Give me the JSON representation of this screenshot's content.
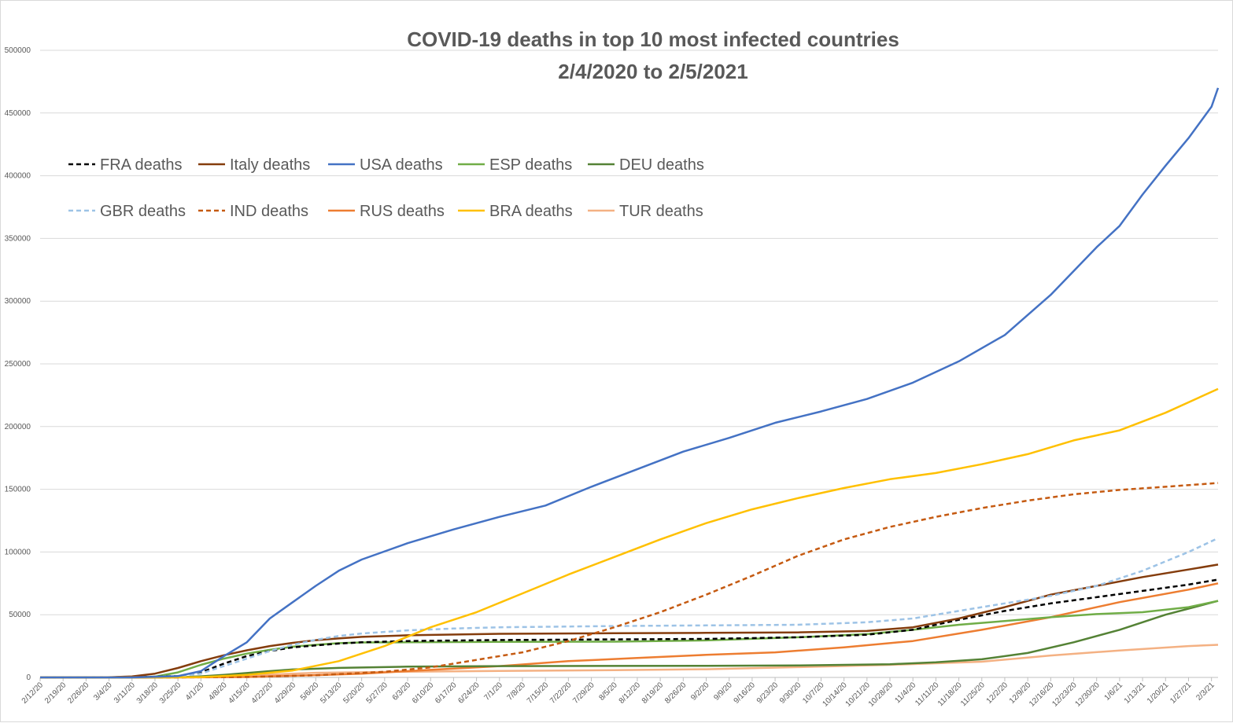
{
  "chart_data": {
    "type": "line",
    "title_lines": [
      "COVID-19 deaths in top 10 most infected countries",
      "2/4/2020 to 2/5/2021"
    ],
    "xlabel": "",
    "ylabel": "",
    "ylim": [
      0,
      500000
    ],
    "yticks": [
      "0",
      "50000",
      "100000",
      "150000",
      "200000",
      "250000",
      "300000",
      "350000",
      "400000",
      "450000",
      "500000"
    ],
    "x_tick_labels": [
      "2/12/20",
      "2/19/20",
      "2/26/20",
      "3/4/20",
      "3/11/20",
      "3/18/20",
      "3/25/20",
      "4/1/20",
      "4/8/20",
      "4/15/20",
      "4/22/20",
      "4/29/20",
      "5/6/20",
      "5/13/20",
      "5/20/20",
      "5/27/20",
      "6/3/20",
      "6/10/20",
      "6/17/20",
      "6/24/20",
      "7/1/20",
      "7/8/20",
      "7/15/20",
      "7/22/20",
      "7/29/20",
      "8/5/20",
      "8/12/20",
      "8/19/20",
      "8/26/20",
      "9/2/20",
      "9/9/20",
      "9/16/20",
      "9/23/20",
      "9/30/20",
      "10/7/20",
      "10/14/20",
      "10/21/20",
      "10/28/20",
      "11/4/20",
      "11/11/20",
      "11/18/20",
      "11/25/20",
      "12/2/20",
      "12/9/20",
      "12/16/20",
      "12/23/20",
      "12/30/20",
      "1/6/21",
      "1/13/21",
      "1/20/21",
      "1/27/21",
      "2/3/21"
    ],
    "x_range": [
      "2/12/20",
      "2/5/21"
    ],
    "grid": "horizontal",
    "legend_position": "top-left",
    "series": [
      {
        "name": "FRA deaths",
        "color": "#000000",
        "dash": true,
        "points": [
          [
            "2/12/20",
            0
          ],
          [
            "3/11/20",
            0
          ],
          [
            "3/25/20",
            1100
          ],
          [
            "4/1/20",
            4000
          ],
          [
            "4/8/20",
            11000
          ],
          [
            "4/15/20",
            17000
          ],
          [
            "4/22/20",
            21000
          ],
          [
            "4/29/20",
            24000
          ],
          [
            "5/6/20",
            25500
          ],
          [
            "5/13/20",
            27000
          ],
          [
            "5/20/20",
            28000
          ],
          [
            "6/3/20",
            29000
          ],
          [
            "7/1/20",
            29800
          ],
          [
            "8/5/20",
            30300
          ],
          [
            "9/2/20",
            30700
          ],
          [
            "9/30/20",
            32000
          ],
          [
            "10/21/20",
            34000
          ],
          [
            "11/4/20",
            38000
          ],
          [
            "11/18/20",
            46000
          ],
          [
            "12/2/20",
            53000
          ],
          [
            "12/16/20",
            59000
          ],
          [
            "12/30/20",
            64000
          ],
          [
            "1/13/21",
            69000
          ],
          [
            "1/27/21",
            74000
          ],
          [
            "2/5/21",
            78000
          ]
        ]
      },
      {
        "name": "Italy deaths",
        "color": "#843c0c",
        "dash": false,
        "points": [
          [
            "2/12/20",
            0
          ],
          [
            "2/26/20",
            0
          ],
          [
            "3/4/20",
            100
          ],
          [
            "3/11/20",
            800
          ],
          [
            "3/18/20",
            3000
          ],
          [
            "3/25/20",
            7500
          ],
          [
            "4/1/20",
            13000
          ],
          [
            "4/8/20",
            17700
          ],
          [
            "4/15/20",
            21600
          ],
          [
            "4/22/20",
            25000
          ],
          [
            "4/29/20",
            27600
          ],
          [
            "5/6/20",
            29700
          ],
          [
            "5/13/20",
            31100
          ],
          [
            "5/20/20",
            32300
          ],
          [
            "6/3/20",
            33600
          ],
          [
            "7/1/20",
            34800
          ],
          [
            "8/5/20",
            35200
          ],
          [
            "9/2/20",
            35500
          ],
          [
            "9/30/20",
            35900
          ],
          [
            "10/21/20",
            37000
          ],
          [
            "11/4/20",
            40000
          ],
          [
            "11/18/20",
            47000
          ],
          [
            "12/2/20",
            56000
          ],
          [
            "12/16/20",
            66000
          ],
          [
            "12/30/20",
            73000
          ],
          [
            "1/13/21",
            80000
          ],
          [
            "1/27/21",
            86000
          ],
          [
            "2/5/21",
            90000
          ]
        ]
      },
      {
        "name": "USA deaths",
        "color": "#4472c4",
        "dash": false,
        "points": [
          [
            "2/12/20",
            0
          ],
          [
            "3/11/20",
            0
          ],
          [
            "3/25/20",
            1000
          ],
          [
            "4/1/20",
            5000
          ],
          [
            "4/8/20",
            17000
          ],
          [
            "4/15/20",
            28000
          ],
          [
            "4/22/20",
            47000
          ],
          [
            "4/29/20",
            60000
          ],
          [
            "5/6/20",
            73000
          ],
          [
            "5/13/20",
            85000
          ],
          [
            "5/20/20",
            94000
          ],
          [
            "6/3/20",
            107000
          ],
          [
            "6/17/20",
            118000
          ],
          [
            "7/1/20",
            128000
          ],
          [
            "7/15/20",
            137000
          ],
          [
            "7/29/20",
            152000
          ],
          [
            "8/12/20",
            166000
          ],
          [
            "8/26/20",
            180000
          ],
          [
            "9/9/20",
            191000
          ],
          [
            "9/23/20",
            203000
          ],
          [
            "10/7/20",
            212000
          ],
          [
            "10/21/20",
            222000
          ],
          [
            "11/4/20",
            235000
          ],
          [
            "11/18/20",
            252000
          ],
          [
            "12/2/20",
            273000
          ],
          [
            "12/16/20",
            305000
          ],
          [
            "12/30/20",
            343000
          ],
          [
            "1/6/21",
            360000
          ],
          [
            "1/13/21",
            385000
          ],
          [
            "1/20/21",
            408000
          ],
          [
            "1/27/21",
            430000
          ],
          [
            "2/3/21",
            455000
          ],
          [
            "2/5/21",
            470000
          ]
        ]
      },
      {
        "name": "ESP deaths",
        "color": "#70ad47",
        "dash": false,
        "points": [
          [
            "2/12/20",
            0
          ],
          [
            "3/11/20",
            0
          ],
          [
            "3/18/20",
            600
          ],
          [
            "3/25/20",
            4000
          ],
          [
            "4/1/20",
            10000
          ],
          [
            "4/8/20",
            15000
          ],
          [
            "4/15/20",
            19000
          ],
          [
            "4/22/20",
            22000
          ],
          [
            "4/29/20",
            24500
          ],
          [
            "5/6/20",
            26000
          ],
          [
            "5/13/20",
            27300
          ],
          [
            "5/20/20",
            27900
          ],
          [
            "6/3/20",
            28000
          ],
          [
            "7/1/20",
            28400
          ],
          [
            "8/5/20",
            28500
          ],
          [
            "9/2/20",
            29500
          ],
          [
            "9/30/20",
            32000
          ],
          [
            "10/21/20",
            34500
          ],
          [
            "11/4/20",
            38000
          ],
          [
            "11/18/20",
            42000
          ],
          [
            "12/2/20",
            45000
          ],
          [
            "12/16/20",
            48000
          ],
          [
            "12/30/20",
            50500
          ],
          [
            "1/13/21",
            52000
          ],
          [
            "1/27/21",
            56000
          ],
          [
            "2/5/21",
            61000
          ]
        ]
      },
      {
        "name": "DEU deaths",
        "color": "#548235",
        "dash": false,
        "points": [
          [
            "2/12/20",
            0
          ],
          [
            "3/18/20",
            0
          ],
          [
            "3/25/20",
            200
          ],
          [
            "4/1/20",
            900
          ],
          [
            "4/8/20",
            2000
          ],
          [
            "4/15/20",
            3500
          ],
          [
            "4/22/20",
            5000
          ],
          [
            "4/29/20",
            6300
          ],
          [
            "5/13/20",
            7600
          ],
          [
            "6/3/20",
            8600
          ],
          [
            "7/1/20",
            9000
          ],
          [
            "9/2/20",
            9300
          ],
          [
            "9/30/20",
            9500
          ],
          [
            "10/28/20",
            10500
          ],
          [
            "11/11/20",
            12000
          ],
          [
            "11/25/20",
            14500
          ],
          [
            "12/9/20",
            19500
          ],
          [
            "12/23/20",
            28000
          ],
          [
            "1/6/21",
            38000
          ],
          [
            "1/20/21",
            50000
          ],
          [
            "2/5/21",
            61000
          ]
        ]
      },
      {
        "name": "GBR deaths",
        "color": "#9dc3e6",
        "dash": true,
        "points": [
          [
            "2/12/20",
            0
          ],
          [
            "3/11/20",
            0
          ],
          [
            "3/18/20",
            100
          ],
          [
            "3/25/20",
            1000
          ],
          [
            "4/1/20",
            3000
          ],
          [
            "4/8/20",
            9000
          ],
          [
            "4/15/20",
            15000
          ],
          [
            "4/22/20",
            21000
          ],
          [
            "4/29/20",
            26000
          ],
          [
            "5/6/20",
            30000
          ],
          [
            "5/13/20",
            33000
          ],
          [
            "5/20/20",
            35000
          ],
          [
            "6/3/20",
            37500
          ],
          [
            "6/17/20",
            39000
          ],
          [
            "7/1/20",
            40000
          ],
          [
            "8/5/20",
            41000
          ],
          [
            "9/2/20",
            41500
          ],
          [
            "9/30/20",
            42000
          ],
          [
            "10/21/20",
            44000
          ],
          [
            "11/4/20",
            47000
          ],
          [
            "11/18/20",
            53000
          ],
          [
            "12/2/20",
            59000
          ],
          [
            "12/16/20",
            65000
          ],
          [
            "12/30/20",
            73000
          ],
          [
            "1/13/21",
            85000
          ],
          [
            "1/27/21",
            100000
          ],
          [
            "2/5/21",
            111000
          ]
        ]
      },
      {
        "name": "IND deaths",
        "color": "#c55a11",
        "dash": true,
        "points": [
          [
            "2/12/20",
            0
          ],
          [
            "3/25/20",
            0
          ],
          [
            "4/15/20",
            400
          ],
          [
            "5/6/20",
            1700
          ],
          [
            "5/27/20",
            4500
          ],
          [
            "6/10/20",
            8000
          ],
          [
            "6/24/20",
            14000
          ],
          [
            "7/8/20",
            20000
          ],
          [
            "7/22/20",
            29000
          ],
          [
            "8/5/20",
            40000
          ],
          [
            "8/19/20",
            52000
          ],
          [
            "9/2/20",
            66000
          ],
          [
            "9/16/20",
            81000
          ],
          [
            "9/30/20",
            97000
          ],
          [
            "10/14/20",
            110000
          ],
          [
            "10/28/20",
            120000
          ],
          [
            "11/11/20",
            128000
          ],
          [
            "11/25/20",
            135000
          ],
          [
            "12/9/20",
            141000
          ],
          [
            "12/23/20",
            146000
          ],
          [
            "1/6/21",
            149500
          ],
          [
            "1/20/21",
            152000
          ],
          [
            "2/5/21",
            155000
          ]
        ]
      },
      {
        "name": "RUS deaths",
        "color": "#ed7d31",
        "dash": false,
        "points": [
          [
            "2/12/20",
            0
          ],
          [
            "3/25/20",
            0
          ],
          [
            "4/15/20",
            300
          ],
          [
            "5/6/20",
            1800
          ],
          [
            "5/20/20",
            3000
          ],
          [
            "6/10/20",
            6000
          ],
          [
            "7/1/20",
            9000
          ],
          [
            "7/22/20",
            13000
          ],
          [
            "8/12/20",
            15500
          ],
          [
            "9/2/20",
            18000
          ],
          [
            "9/23/20",
            20000
          ],
          [
            "10/14/20",
            24000
          ],
          [
            "11/4/20",
            29000
          ],
          [
            "11/25/20",
            38000
          ],
          [
            "12/16/20",
            48000
          ],
          [
            "1/6/21",
            60000
          ],
          [
            "1/27/21",
            70000
          ],
          [
            "2/5/21",
            75000
          ]
        ]
      },
      {
        "name": "BRA deaths",
        "color": "#ffc000",
        "dash": false,
        "points": [
          [
            "2/12/20",
            0
          ],
          [
            "3/18/20",
            0
          ],
          [
            "4/1/20",
            250
          ],
          [
            "4/15/20",
            2000
          ],
          [
            "4/29/20",
            5500
          ],
          [
            "5/13/20",
            13000
          ],
          [
            "5/27/20",
            25000
          ],
          [
            "6/10/20",
            40000
          ],
          [
            "6/24/20",
            52000
          ],
          [
            "7/8/20",
            67000
          ],
          [
            "7/22/20",
            82000
          ],
          [
            "8/5/20",
            96000
          ],
          [
            "8/19/20",
            110000
          ],
          [
            "9/2/20",
            123000
          ],
          [
            "9/16/20",
            134000
          ],
          [
            "9/30/20",
            143000
          ],
          [
            "10/14/20",
            151000
          ],
          [
            "10/28/20",
            158000
          ],
          [
            "11/11/20",
            163000
          ],
          [
            "11/25/20",
            170000
          ],
          [
            "12/9/20",
            178000
          ],
          [
            "12/23/20",
            189000
          ],
          [
            "1/6/21",
            197000
          ],
          [
            "1/20/21",
            211000
          ],
          [
            "2/5/21",
            230000
          ]
        ]
      },
      {
        "name": "TUR deaths",
        "color": "#f4b183",
        "dash": false,
        "points": [
          [
            "2/12/20",
            0
          ],
          [
            "3/18/20",
            0
          ],
          [
            "4/1/20",
            200
          ],
          [
            "4/15/20",
            1500
          ],
          [
            "5/6/20",
            3700
          ],
          [
            "6/3/20",
            4600
          ],
          [
            "7/1/20",
            5200
          ],
          [
            "8/5/20",
            5800
          ],
          [
            "9/2/20",
            6500
          ],
          [
            "9/30/20",
            8200
          ],
          [
            "10/28/20",
            10000
          ],
          [
            "11/25/20",
            12500
          ],
          [
            "12/16/20",
            17500
          ],
          [
            "1/6/21",
            21500
          ],
          [
            "1/27/21",
            25000
          ],
          [
            "2/5/21",
            26000
          ]
        ]
      }
    ]
  }
}
